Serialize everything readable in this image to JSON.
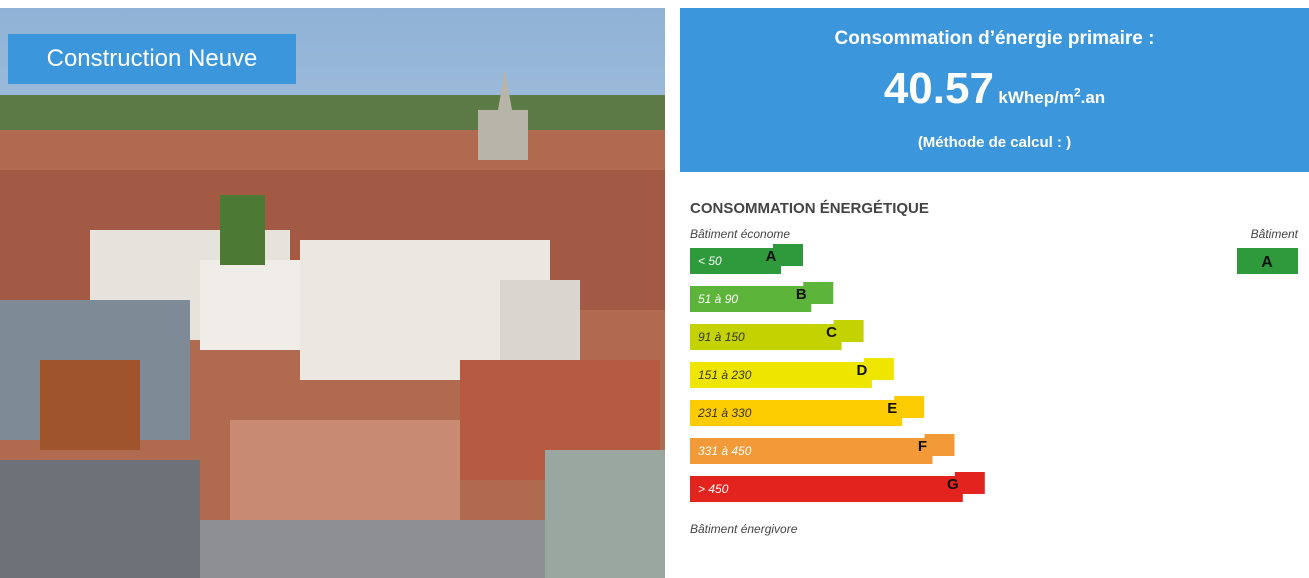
{
  "photo_label": "Construction Neuve",
  "header": {
    "title": "Consommation d’énergie primaire :",
    "value": "40.57",
    "unit": "kWhep/m",
    "unit_sup": "2",
    "unit_suffix": ".an",
    "method": "(Méthode de calcul : )"
  },
  "label": {
    "title": "CONSOMMATION ÉNERGÉTIQUE",
    "top_note": "Bâtiment économe",
    "bottom_note": "Bâtiment énergivore",
    "classes": [
      {
        "range": "< 50",
        "letter": "A",
        "color": "#2f9a3c"
      },
      {
        "range": "51 à 90",
        "letter": "B",
        "color": "#5db43a"
      },
      {
        "range": "91 à 150",
        "letter": "C",
        "color": "#c4d200"
      },
      {
        "range": "151 à 230",
        "letter": "D",
        "color": "#efe600"
      },
      {
        "range": "231 à 330",
        "letter": "E",
        "color": "#fccb00"
      },
      {
        "range": "331 à 450",
        "letter": "F",
        "color": "#f39a38"
      },
      {
        "range": "> 450",
        "letter": "G",
        "color": "#e3241e"
      }
    ],
    "building_title": "Bâtiment",
    "building_class": "A",
    "building_color": "#2f9a3c"
  }
}
